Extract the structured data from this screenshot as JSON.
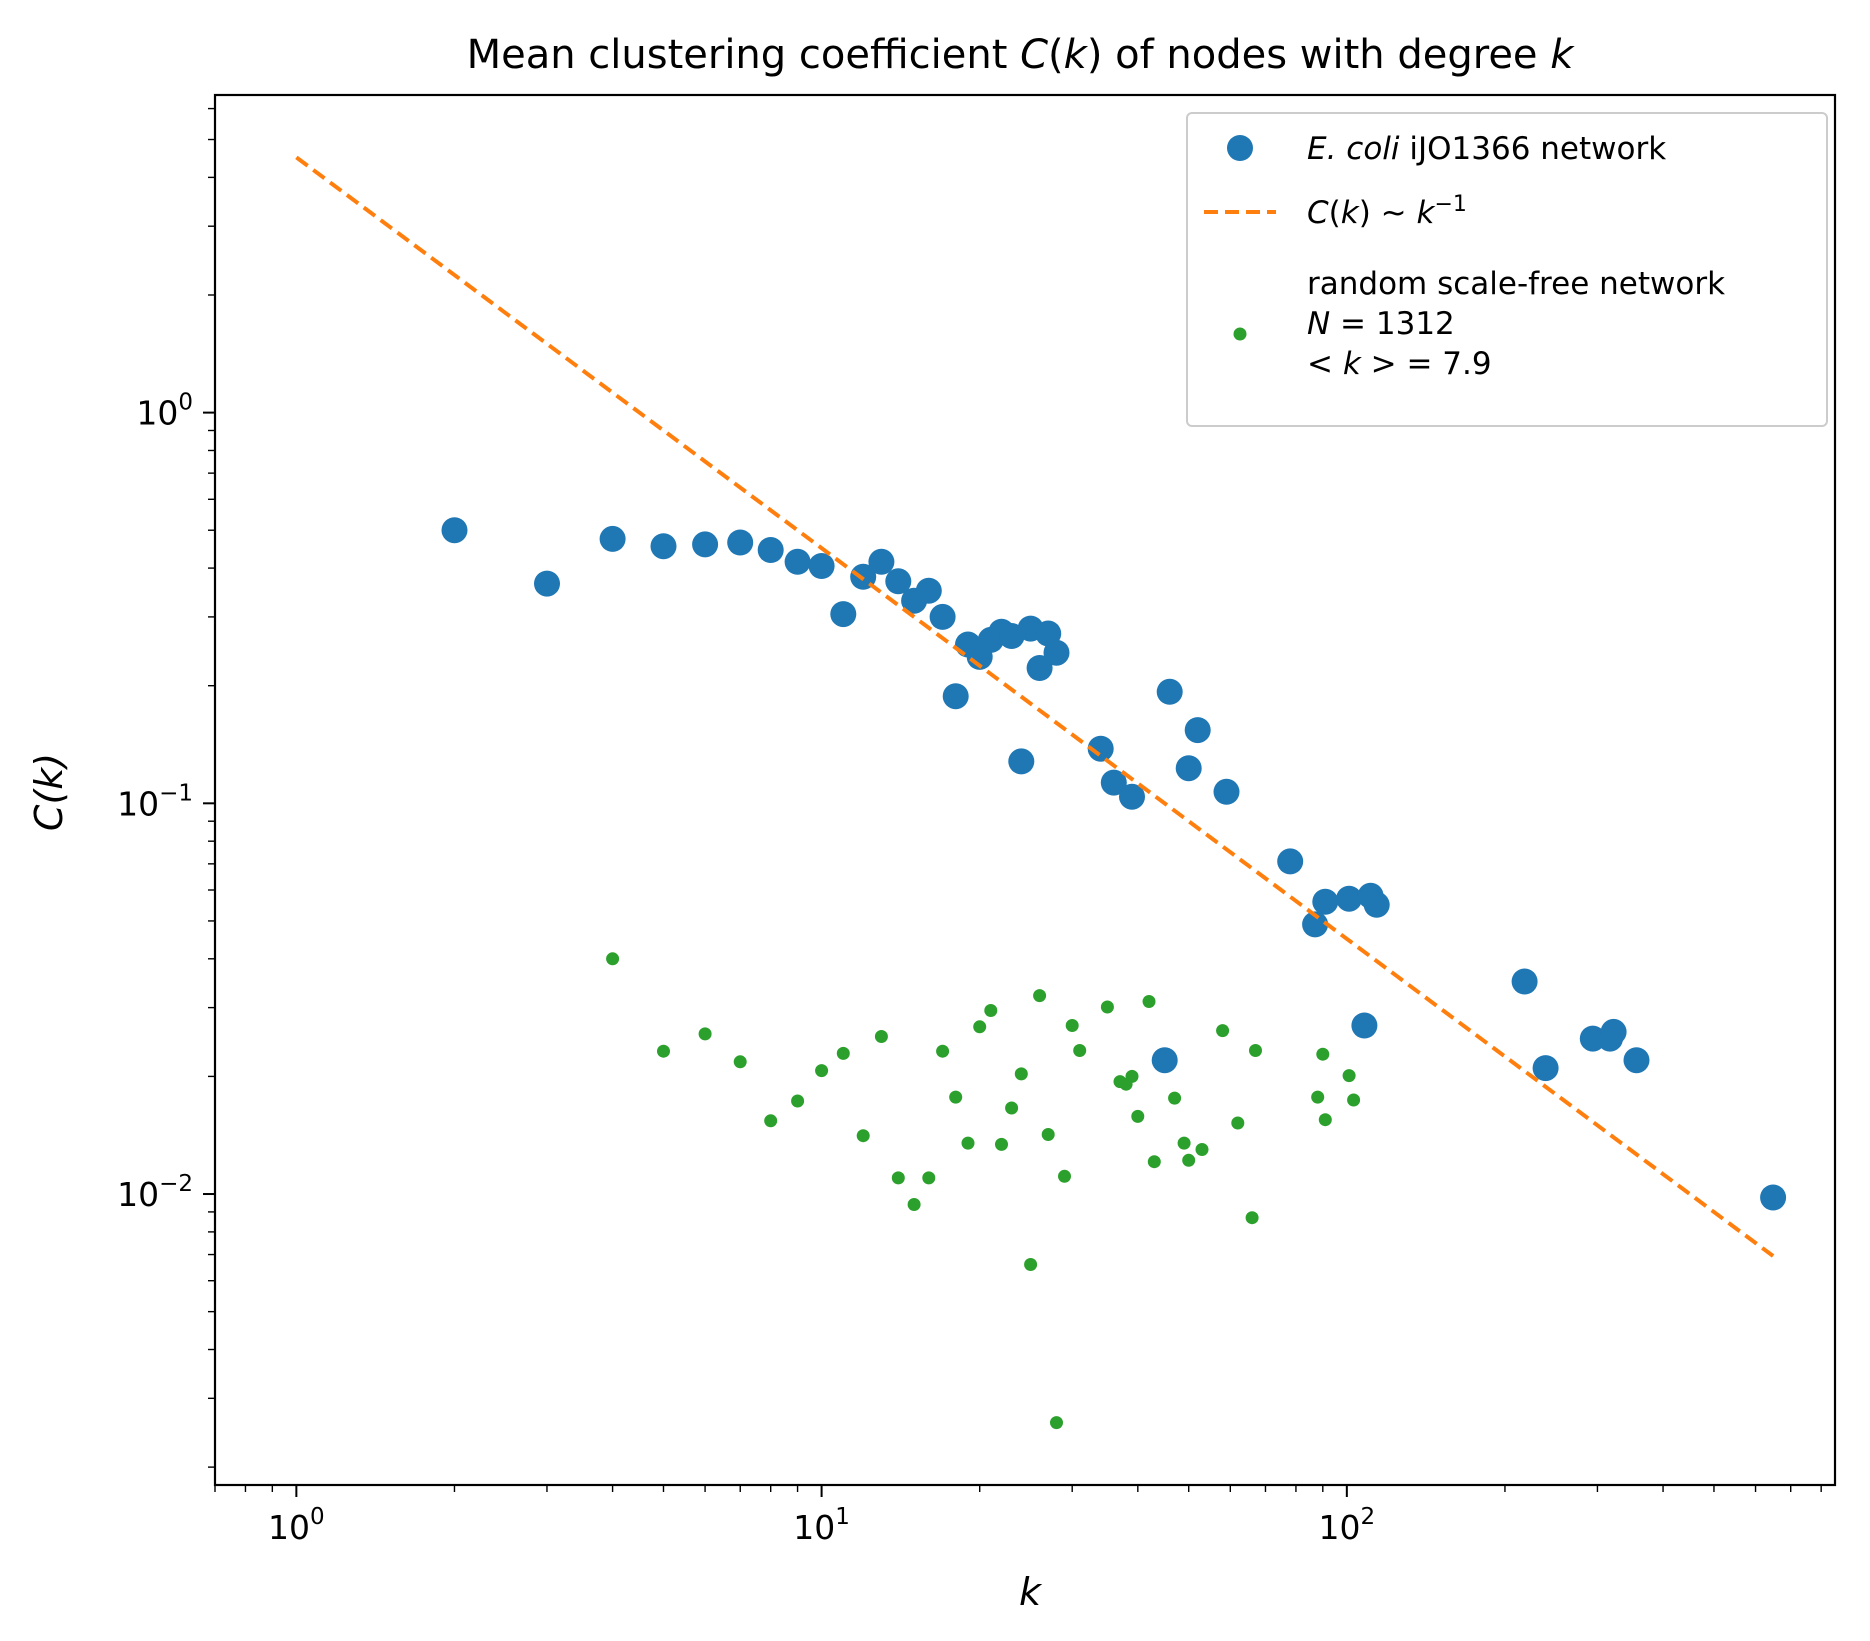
{
  "chart_data": {
    "type": "scatter",
    "title": "Mean clustering coefficient C(k) of nodes with degree k",
    "title_parts": [
      {
        "t": "Mean clustering coefficient ",
        "italic": false
      },
      {
        "t": "C",
        "italic": true
      },
      {
        "t": "(",
        "italic": false
      },
      {
        "t": "k",
        "italic": true
      },
      {
        "t": ") of nodes with degree ",
        "italic": false
      },
      {
        "t": "k",
        "italic": true
      }
    ],
    "xlabel": "k",
    "ylabel": "C(k)",
    "xscale": "log",
    "yscale": "log",
    "xlim": [
      0.7,
      850
    ],
    "ylim": [
      0.0018,
      6.5
    ],
    "xticks": [
      {
        "value": 1,
        "base": "10",
        "exp": "0"
      },
      {
        "value": 10,
        "base": "10",
        "exp": "1"
      },
      {
        "value": 100,
        "base": "10",
        "exp": "2"
      }
    ],
    "yticks": [
      {
        "value": 0.01,
        "base": "10",
        "exp": "−2"
      },
      {
        "value": 0.1,
        "base": "10",
        "exp": "−1"
      },
      {
        "value": 1,
        "base": "10",
        "exp": "0"
      }
    ],
    "grid": false,
    "legend": {
      "position": "top-right",
      "entries": [
        {
          "series": 0,
          "label_parts": [
            {
              "t": "E. coli",
              "italic": true
            },
            {
              "t": " iJO1366 network",
              "italic": false
            }
          ]
        },
        {
          "series": 1,
          "label_parts": [
            {
              "t": "C",
              "italic": true
            },
            {
              "t": "(",
              "italic": false
            },
            {
              "t": "k",
              "italic": true
            },
            {
              "t": ") ~ ",
              "italic": false
            },
            {
              "t": "k",
              "italic": true
            },
            {
              "t": "−1",
              "italic": false,
              "sup": true
            }
          ]
        },
        {
          "series": 2,
          "lines": [
            [
              {
                "t": "random scale-free network",
                "italic": false
              }
            ],
            [
              {
                "t": "N",
                "italic": true
              },
              {
                "t": " = 1312",
                "italic": false
              }
            ],
            [
              {
                "t": "< ",
                "italic": false
              },
              {
                "t": "k",
                "italic": true
              },
              {
                "t": " >  = 7.9",
                "italic": false
              }
            ]
          ]
        }
      ]
    },
    "series": [
      {
        "name": "E. coli iJO1366 network",
        "kind": "scatter",
        "color": "#1f77b4",
        "marker_size": "large",
        "points": [
          [
            2,
            0.5
          ],
          [
            3,
            0.365
          ],
          [
            4,
            0.475
          ],
          [
            5,
            0.455
          ],
          [
            6,
            0.46
          ],
          [
            7,
            0.465
          ],
          [
            8,
            0.445
          ],
          [
            9,
            0.415
          ],
          [
            10,
            0.405
          ],
          [
            11,
            0.305
          ],
          [
            12,
            0.38
          ],
          [
            13,
            0.415
          ],
          [
            14,
            0.37
          ],
          [
            15,
            0.33
          ],
          [
            16,
            0.35
          ],
          [
            17,
            0.3
          ],
          [
            18,
            0.188
          ],
          [
            19,
            0.255
          ],
          [
            20,
            0.237
          ],
          [
            21,
            0.262
          ],
          [
            22,
            0.275
          ],
          [
            23,
            0.268
          ],
          [
            24,
            0.128
          ],
          [
            25,
            0.28
          ],
          [
            26,
            0.222
          ],
          [
            27,
            0.272
          ],
          [
            28,
            0.243
          ],
          [
            34,
            0.138
          ],
          [
            36,
            0.113
          ],
          [
            39,
            0.104
          ],
          [
            45,
            0.022
          ],
          [
            46,
            0.193
          ],
          [
            50,
            0.123
          ],
          [
            52,
            0.154
          ],
          [
            59,
            0.107
          ],
          [
            78,
            0.071
          ],
          [
            87,
            0.049
          ],
          [
            91,
            0.056
          ],
          [
            101,
            0.057
          ],
          [
            108,
            0.027
          ],
          [
            111,
            0.058
          ],
          [
            114,
            0.055
          ],
          [
            218,
            0.035
          ],
          [
            239,
            0.021
          ],
          [
            294,
            0.025
          ],
          [
            317,
            0.025
          ],
          [
            322,
            0.026
          ],
          [
            356,
            0.022
          ],
          [
            648,
            0.0098
          ]
        ]
      },
      {
        "name": "C(k) ~ k^-1",
        "kind": "line",
        "style": "dashed",
        "color": "#ff7f0e",
        "points": [
          [
            1,
            4.5
          ],
          [
            648,
            0.00694
          ]
        ]
      },
      {
        "name": "random scale-free network",
        "kind": "scatter",
        "color": "#2ca02c",
        "marker_size": "small",
        "points": [
          [
            4,
            0.04
          ],
          [
            5,
            0.0232
          ],
          [
            6,
            0.0257
          ],
          [
            7,
            0.0218
          ],
          [
            8,
            0.0154
          ],
          [
            9,
            0.0173
          ],
          [
            10,
            0.0207
          ],
          [
            11,
            0.0229
          ],
          [
            12,
            0.0141
          ],
          [
            13,
            0.0253
          ],
          [
            14,
            0.011
          ],
          [
            15,
            0.0094
          ],
          [
            16,
            0.011
          ],
          [
            17,
            0.0232
          ],
          [
            18,
            0.0177
          ],
          [
            19,
            0.0135
          ],
          [
            20,
            0.0268
          ],
          [
            21,
            0.0295
          ],
          [
            22,
            0.0134
          ],
          [
            23,
            0.0166
          ],
          [
            24,
            0.0203
          ],
          [
            25,
            0.0066
          ],
          [
            26,
            0.0322
          ],
          [
            27,
            0.0142
          ],
          [
            28,
            0.0026
          ],
          [
            29,
            0.0111
          ],
          [
            30,
            0.027
          ],
          [
            31,
            0.0233
          ],
          [
            35,
            0.0301
          ],
          [
            37,
            0.0194
          ],
          [
            38,
            0.0191
          ],
          [
            39,
            0.02
          ],
          [
            40,
            0.0158
          ],
          [
            42,
            0.0311
          ],
          [
            43,
            0.0121
          ],
          [
            47,
            0.0176
          ],
          [
            49,
            0.0135
          ],
          [
            50,
            0.0122
          ],
          [
            53,
            0.013
          ],
          [
            58,
            0.0262
          ],
          [
            62,
            0.0152
          ],
          [
            66,
            0.0087
          ],
          [
            67,
            0.0233
          ],
          [
            88,
            0.0177
          ],
          [
            90,
            0.0228
          ],
          [
            91,
            0.0155
          ],
          [
            101,
            0.0201
          ],
          [
            103,
            0.0174
          ]
        ]
      }
    ]
  }
}
